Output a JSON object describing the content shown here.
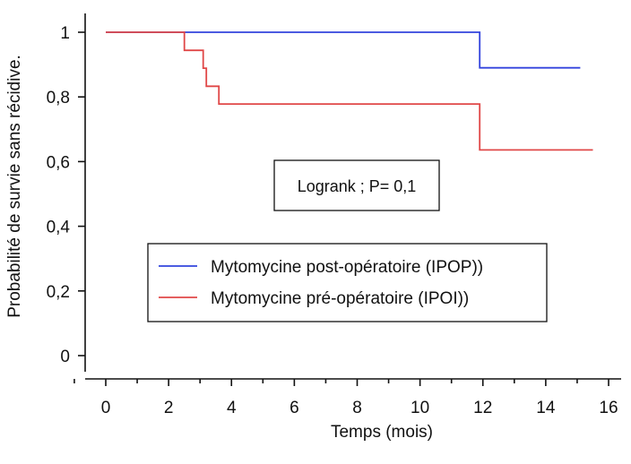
{
  "chart_data": {
    "type": "line",
    "subtype": "kaplan-meier-step",
    "xlabel": "Temps (mois)",
    "ylabel": "Probabilité de survie sans récidive.",
    "xlim": [
      0,
      16
    ],
    "ylim": [
      0,
      1
    ],
    "xticks": [
      0,
      2,
      4,
      6,
      8,
      10,
      12,
      14,
      16
    ],
    "xtick_labels": [
      "0",
      "2",
      "4",
      "6",
      "8",
      "10",
      "12",
      "14",
      "16"
    ],
    "yticks": [
      0,
      0.2,
      0.4,
      0.6,
      0.8,
      1
    ],
    "ytick_labels": [
      "0",
      "0,2",
      "0,4",
      "0,6",
      "0,8",
      "1"
    ],
    "series": [
      {
        "name": "Mytomycine post-opératoire (IPOP))",
        "color": "#3344dd",
        "points": [
          [
            0,
            1
          ],
          [
            11.9,
            1
          ],
          [
            11.9,
            0.89
          ],
          [
            15.1,
            0.89
          ]
        ]
      },
      {
        "name": "Mytomycine pré-opératoire (IPOI))",
        "color": "#e04848",
        "points": [
          [
            0,
            1
          ],
          [
            2.5,
            1
          ],
          [
            2.5,
            0.944
          ],
          [
            3.1,
            0.944
          ],
          [
            3.1,
            0.889
          ],
          [
            3.2,
            0.889
          ],
          [
            3.2,
            0.833
          ],
          [
            3.6,
            0.833
          ],
          [
            3.6,
            0.778
          ],
          [
            11.9,
            0.778
          ],
          [
            11.9,
            0.636
          ],
          [
            15.5,
            0.636
          ]
        ]
      }
    ],
    "annotation": "Logrank ; P= 0,1",
    "legend_position": "center"
  }
}
